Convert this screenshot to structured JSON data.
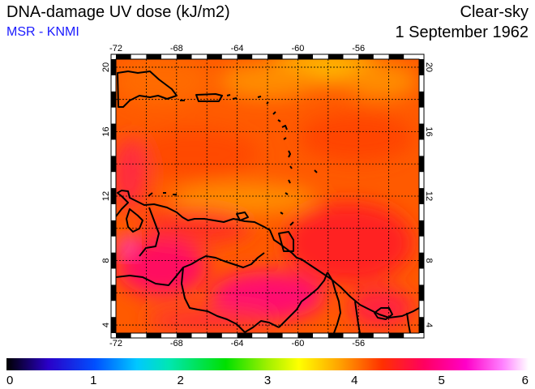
{
  "header": {
    "title": "DNA-damage UV dose (kJ/m2)",
    "credit": "MSR - KNMI",
    "sky": "Clear-sky",
    "date": "1 September 1962"
  },
  "map": {
    "region": "Caribbean",
    "lon_ticks": [
      -72,
      -68,
      -64,
      -60,
      -56
    ],
    "lat_ticks": [
      4,
      8,
      12,
      16,
      20
    ],
    "lon_range": [
      -72,
      -52
    ],
    "lat_range": [
      3.5,
      20.5
    ],
    "grid": true,
    "coastline_color": "#000000"
  },
  "colorbar": {
    "ticks": [
      "0",
      "1",
      "2",
      "3",
      "4",
      "5",
      "6"
    ],
    "range": [
      0,
      6
    ],
    "stops": [
      "#000000",
      "#2a00c8",
      "#0050ff",
      "#00c8ff",
      "#00e6b4",
      "#00e000",
      "#a0f000",
      "#ffff00",
      "#ffa000",
      "#ff3000",
      "#ff0060",
      "#ff00c8",
      "#ff80ff",
      "#ffffff"
    ]
  }
}
